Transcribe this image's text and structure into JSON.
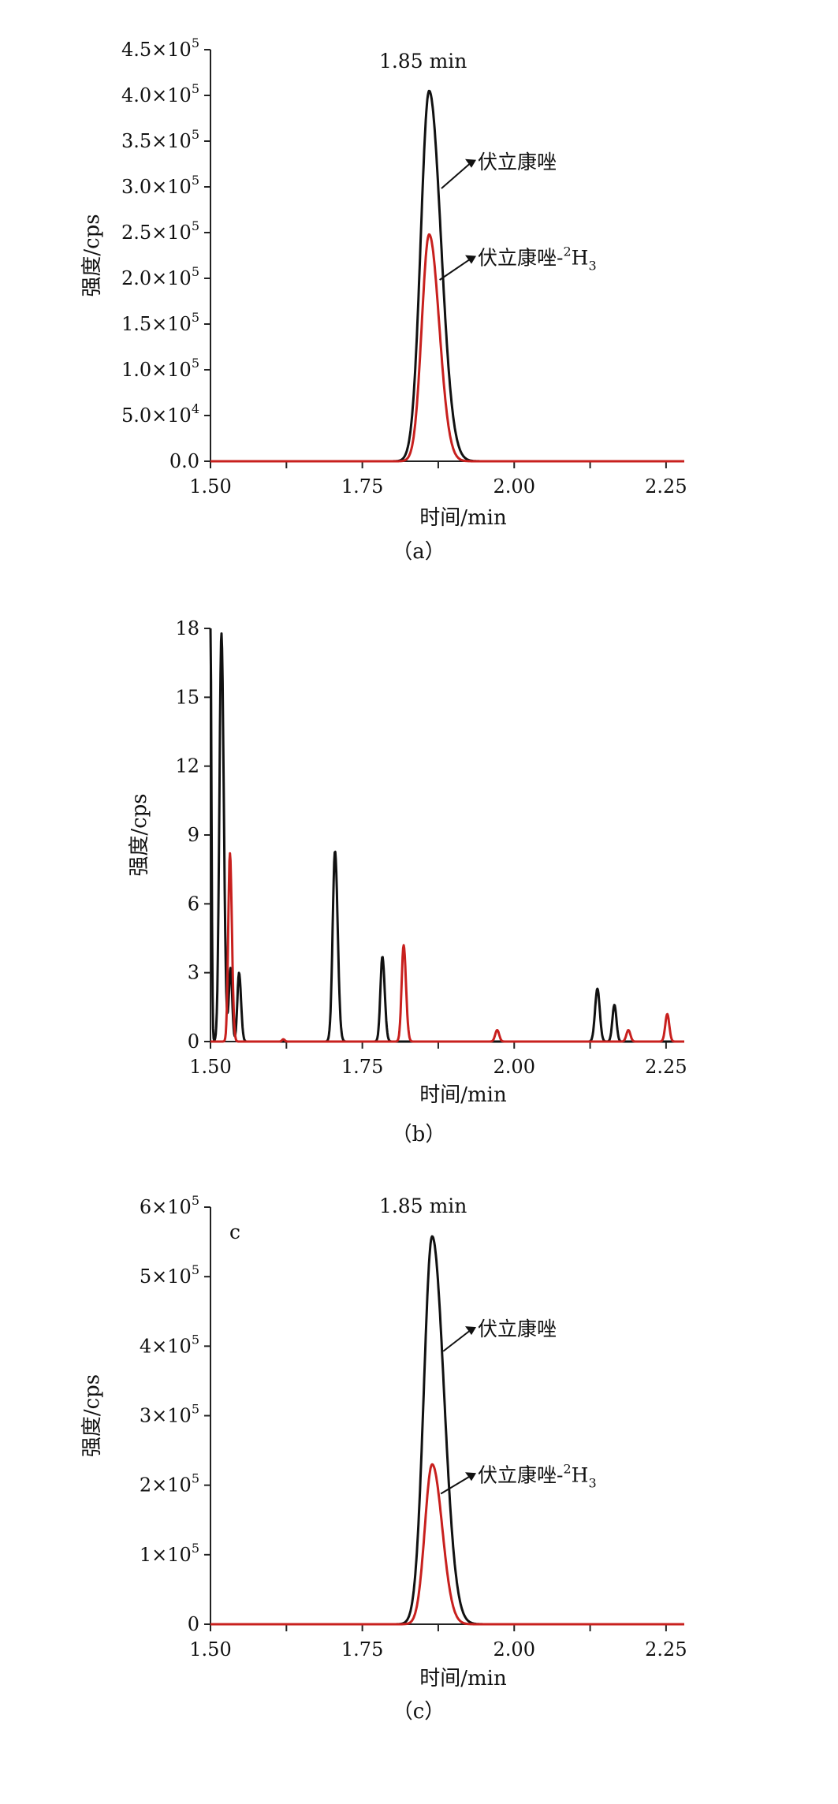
{
  "chart_data": [
    {
      "panel": "a",
      "type": "line",
      "caption": "（a）",
      "xlabel": "时间/min",
      "ylabel": "强度/cps",
      "xlim": [
        1.5,
        2.28
      ],
      "ylim": [
        0,
        450000
      ],
      "xticks": [
        1.5,
        1.75,
        2.0,
        2.25
      ],
      "xtick_labels": [
        "1.50",
        "1.75",
        "2.00",
        "2.25"
      ],
      "yticks": [
        0,
        50000,
        100000,
        150000,
        200000,
        250000,
        300000,
        350000,
        400000,
        450000
      ],
      "ytick_labels": [
        {
          "base": "0.0",
          "exp": ""
        },
        {
          "base": "5.0×10",
          "exp": "4"
        },
        {
          "base": "1.0×10",
          "exp": "5"
        },
        {
          "base": "1.5×10",
          "exp": "5"
        },
        {
          "base": "2.0×10",
          "exp": "5"
        },
        {
          "base": "2.5×10",
          "exp": "5"
        },
        {
          "base": "3.0×10",
          "exp": "5"
        },
        {
          "base": "3.5×10",
          "exp": "5"
        },
        {
          "base": "4.0×10",
          "exp": "5"
        },
        {
          "base": "4.5×10",
          "exp": "5"
        }
      ],
      "series": [
        {
          "name": "伏立康唑",
          "color": "#111111",
          "peaks": [
            {
              "x": 1.86,
              "y": 405000,
              "left": 0.025,
              "right": 0.035
            }
          ]
        },
        {
          "name": "伏立康唑-²H₃",
          "color": "#c8201e",
          "peaks": [
            {
              "x": 1.86,
              "y": 248000,
              "left": 0.022,
              "right": 0.03
            }
          ]
        }
      ],
      "annotations": [
        {
          "text": "1.85 min",
          "x": 1.85,
          "y": 425000
        }
      ],
      "series_labels": [
        {
          "base": "伏立康唑",
          "sup": "",
          "sub": ""
        },
        {
          "base": "伏立康唑-",
          "sup": "2",
          "sub": "3",
          "hbase": "H"
        }
      ],
      "label_points": [
        {
          "x": 1.94,
          "y": 320000,
          "tip_x": 1.875,
          "tip_y": 300000
        },
        {
          "x": 1.94,
          "y": 215000,
          "tip_x": 1.872,
          "tip_y": 200000
        }
      ]
    },
    {
      "panel": "b",
      "type": "line",
      "caption": "（b）",
      "xlabel": "时间/min",
      "ylabel": "强度/cps",
      "xlim": [
        1.5,
        2.28
      ],
      "ylim": [
        0,
        18
      ],
      "xticks": [
        1.5,
        1.75,
        2.0,
        2.25
      ],
      "xtick_labels": [
        "1.50",
        "1.75",
        "2.00",
        "2.25"
      ],
      "yticks": [
        0,
        3,
        6,
        9,
        12,
        15,
        18
      ],
      "ytick_labels": [
        {
          "base": "0",
          "exp": ""
        },
        {
          "base": "3",
          "exp": ""
        },
        {
          "base": "6",
          "exp": ""
        },
        {
          "base": "9",
          "exp": ""
        },
        {
          "base": "12",
          "exp": ""
        },
        {
          "base": "15",
          "exp": ""
        },
        {
          "base": "18",
          "exp": ""
        }
      ],
      "series": [
        {
          "name": "伏立康唑",
          "color": "#111111",
          "peaks": [
            {
              "x": 1.5,
              "y": 18,
              "left": 0.003,
              "right": 0.003
            },
            {
              "x": 1.518,
              "y": 17.8,
              "left": 0.006,
              "right": 0.007
            },
            {
              "x": 1.533,
              "y": 3.2,
              "left": 0.005,
              "right": 0.005
            },
            {
              "x": 1.547,
              "y": 3.0,
              "left": 0.005,
              "right": 0.006
            },
            {
              "x": 1.705,
              "y": 8.3,
              "left": 0.007,
              "right": 0.008
            },
            {
              "x": 1.783,
              "y": 3.7,
              "left": 0.006,
              "right": 0.007
            },
            {
              "x": 2.137,
              "y": 2.3,
              "left": 0.007,
              "right": 0.007
            },
            {
              "x": 2.165,
              "y": 1.6,
              "left": 0.006,
              "right": 0.006
            }
          ]
        },
        {
          "name": "伏立康唑-²H₃",
          "color": "#c8201e",
          "peaks": [
            {
              "x": 1.532,
              "y": 8.2,
              "left": 0.005,
              "right": 0.006
            },
            {
              "x": 1.62,
              "y": 0.1,
              "left": 0.004,
              "right": 0.004
            },
            {
              "x": 1.818,
              "y": 4.2,
              "left": 0.006,
              "right": 0.007
            },
            {
              "x": 1.972,
              "y": 0.5,
              "left": 0.006,
              "right": 0.006
            },
            {
              "x": 2.188,
              "y": 0.5,
              "left": 0.006,
              "right": 0.006
            },
            {
              "x": 2.252,
              "y": 1.2,
              "left": 0.006,
              "right": 0.006
            }
          ]
        }
      ],
      "annotations": [],
      "series_labels": [],
      "label_points": []
    },
    {
      "panel": "c",
      "type": "line",
      "caption": "（c）",
      "panel_letter": "c",
      "xlabel": "时间/min",
      "ylabel": "强度/cps",
      "xlim": [
        1.5,
        2.28
      ],
      "ylim": [
        0,
        600000
      ],
      "xticks": [
        1.5,
        1.75,
        2.0,
        2.25
      ],
      "xtick_labels": [
        "1.50",
        "1.75",
        "2.00",
        "2.25"
      ],
      "yticks": [
        0,
        100000,
        200000,
        300000,
        400000,
        500000,
        600000
      ],
      "ytick_labels": [
        {
          "base": "0",
          "exp": ""
        },
        {
          "base": "1×10",
          "exp": "5"
        },
        {
          "base": "2×10",
          "exp": "5"
        },
        {
          "base": "3×10",
          "exp": "5"
        },
        {
          "base": "4×10",
          "exp": "5"
        },
        {
          "base": "5×10",
          "exp": "5"
        },
        {
          "base": "6×10",
          "exp": "5"
        }
      ],
      "series": [
        {
          "name": "伏立康唑",
          "color": "#111111",
          "peaks": [
            {
              "x": 1.865,
              "y": 558000,
              "left": 0.025,
              "right": 0.035
            }
          ]
        },
        {
          "name": "伏立康唑-²H₃",
          "color": "#c8201e",
          "peaks": [
            {
              "x": 1.865,
              "y": 230000,
              "left": 0.022,
              "right": 0.03
            }
          ]
        }
      ],
      "annotations": [
        {
          "text": "1.85 min",
          "x": 1.85,
          "y": 585000
        }
      ],
      "series_labels": [
        {
          "base": "伏立康唑",
          "sup": "",
          "sub": ""
        },
        {
          "base": "伏立康唑-",
          "sup": "2",
          "sub": "3",
          "hbase": "H"
        }
      ],
      "label_points": [
        {
          "x": 1.94,
          "y": 415000,
          "tip_x": 1.878,
          "tip_y": 395000
        },
        {
          "x": 1.94,
          "y": 205000,
          "tip_x": 1.874,
          "tip_y": 190000
        }
      ]
    }
  ]
}
